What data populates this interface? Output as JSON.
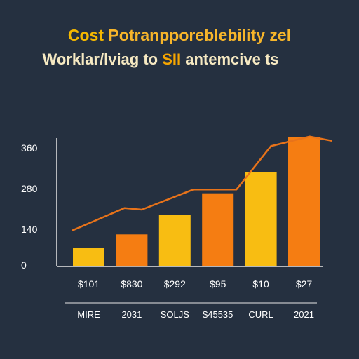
{
  "colors": {
    "background": "#253040",
    "title_first_word": "#f5b800",
    "title_rest": "#f7b52a",
    "subtitle": "#f6e9c2",
    "subtitle_accent": "#f7a600",
    "axis": "#e6e6e6",
    "text": "#ffffff",
    "line": "#e8731a",
    "bar_yellow": "#f8bd12",
    "bar_orange": "#f57d12"
  },
  "chart_data": {
    "type": "bar",
    "title_parts": [
      "Cost",
      " Potranpporeblebility zel"
    ],
    "subtitle_parts": [
      "Worklar/lviag to ",
      "SII",
      " antemcive ts"
    ],
    "y_ticks": [
      "360",
      "280",
      "140",
      "0"
    ],
    "ylim": [
      0,
      400
    ],
    "bar_labels": [
      "$101",
      "$830",
      "$292",
      "$95",
      "$10",
      "$27"
    ],
    "categories": [
      "MIRE",
      "2031",
      "SOLJS",
      "$45535",
      "CURL",
      "2021"
    ],
    "values": [
      57,
      100,
      160,
      228,
      295,
      404
    ],
    "bar_colors": [
      "bar_yellow",
      "bar_orange",
      "bar_yellow",
      "bar_orange",
      "bar_yellow",
      "bar_orange"
    ],
    "line": {
      "x": [
        0,
        1.2,
        1.6,
        2.8,
        3.8,
        4.6,
        5.5,
        6.0
      ],
      "values": [
        113,
        182,
        177,
        240,
        240,
        375,
        405,
        392
      ]
    },
    "grid": false,
    "legend": "none"
  }
}
